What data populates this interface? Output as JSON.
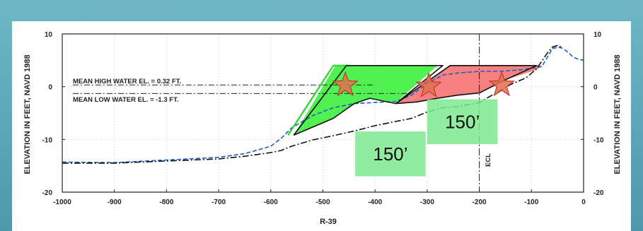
{
  "chart_data": {
    "type": "line",
    "title": "",
    "xlabel": "R-39",
    "ylabel_left": "ELEVATION IN FEET,  NAVD 1988",
    "ylabel_right": "ELEVATION IN FEET,  NAVD 1988",
    "xlim": [
      -1000,
      0
    ],
    "ylim": [
      -20,
      10
    ],
    "grid": true,
    "x_ticks": [
      -1000,
      -900,
      -800,
      -700,
      -600,
      -500,
      -400,
      -300,
      -200,
      -100,
      0
    ],
    "x_tick_labels": [
      "-1000",
      "-900",
      "-800",
      "-700",
      "-600",
      "-500",
      "-400",
      "-300",
      "-200",
      "-100",
      "0"
    ],
    "y_ticks": [
      10,
      0,
      -10,
      -20
    ],
    "y_tick_labels": [
      "10",
      "0",
      "-10",
      "-20"
    ],
    "annotations": {
      "mhw": "MEAN HIGH WATER EL. = 0.32 FT.",
      "mlw": "MEAN LOW WATER EL. = -1.3 FT.",
      "ecl": "ECL",
      "dist_left": "150’",
      "dist_right": "150’"
    },
    "mhw_value": 0.32,
    "mlw_value": -1.3,
    "ecl_x": -200,
    "series": [
      {
        "style": "dashed",
        "color": "#1f5fbf",
        "x": [
          -1000,
          -900,
          -800,
          -700,
          -650,
          -600,
          -580,
          -560,
          -520,
          -480,
          -440,
          -400,
          -360,
          -330,
          -300,
          -270,
          -240,
          -200,
          -160,
          -120,
          -100,
          -80,
          -70,
          -60,
          -50,
          -40,
          -30,
          -20,
          -10,
          0
        ],
        "y": [
          -14.3,
          -14.4,
          -13.9,
          -13.4,
          -12.7,
          -11.3,
          -9.8,
          -7.8,
          -5.5,
          -4.0,
          -3.2,
          -3.0,
          -2.8,
          -1.6,
          0.6,
          2.2,
          2.6,
          2.9,
          2.9,
          3.2,
          3.5,
          3.8,
          5.5,
          7.2,
          7.5,
          7.3,
          6.5,
          5.6,
          5.2,
          5.0
        ]
      },
      {
        "style": "dash-dot",
        "color": "#111111",
        "x": [
          -1000,
          -900,
          -800,
          -700,
          -650,
          -600,
          -580,
          -560,
          -520,
          -480,
          -440,
          -400,
          -360,
          -330,
          -300,
          -270,
          -240,
          -200,
          -170,
          -140,
          -110,
          -90,
          -70,
          -60,
          -50,
          -40
        ],
        "y": [
          -14.5,
          -14.5,
          -14.1,
          -13.7,
          -13.2,
          -12.5,
          -12.1,
          -11.3,
          -10.1,
          -9.3,
          -8.4,
          -7.4,
          -6.6,
          -6.0,
          -4.8,
          -4.0,
          -3.8,
          -3.0,
          -1.3,
          0.4,
          1.7,
          3.4,
          6.3,
          7.5,
          7.8,
          7.4
        ]
      }
    ],
    "fill_regions": [
      {
        "name": "",
        "color": "#33ee33",
        "x": [
          -556,
          -476,
          -450,
          -380,
          -317,
          -280,
          -360,
          -410,
          -440,
          -480
        ],
        "y": [
          -9.2,
          4.0,
          4.0,
          4.0,
          4.0,
          4.0,
          -3.0,
          -2.2,
          -3.4,
          -6.0
        ]
      },
      {
        "name": "",
        "color": "#f56060",
        "x": [
          -360,
          -256,
          -80,
          -90,
          -150,
          -200,
          -240,
          -280,
          -320
        ],
        "y": [
          -3.2,
          4.0,
          4.0,
          3.2,
          1.3,
          -1.2,
          -1.6,
          -2.2,
          -2.9
        ]
      }
    ],
    "outlines": [
      {
        "color": "#3ad23a",
        "x": [
          -567,
          -480,
          -450
        ],
        "y": [
          -9.2,
          4.0,
          4.0
        ]
      },
      {
        "color": "#111111",
        "x": [
          -556,
          -455,
          -270,
          -360,
          -410,
          -440,
          -480,
          -556
        ],
        "y": [
          -9.2,
          4.0,
          4.0,
          -3.2,
          -2.2,
          -3.2,
          -6.0,
          -9.2
        ]
      },
      {
        "color": "#111111",
        "x": [
          -360,
          -256,
          -90,
          -150,
          -200,
          -240,
          -280,
          -320,
          -360
        ],
        "y": [
          -3.2,
          4.0,
          4.0,
          1.3,
          -1.2,
          -1.6,
          -2.2,
          -2.9,
          -3.2
        ]
      }
    ],
    "markers": [
      {
        "x": -457,
        "y": 0.3,
        "color": "#e0704f"
      },
      {
        "x": -297,
        "y": 0.1,
        "color": "#e0704f"
      },
      {
        "x": -157,
        "y": 0.3,
        "color": "#e0704f"
      }
    ],
    "green_boxes": [
      {
        "label_key": "dist_right",
        "x0": -300,
        "x1": -165,
        "y0": -10.9,
        "y1": -2.4
      },
      {
        "label_key": "dist_left",
        "x0": -438,
        "x1": -303,
        "y0": -17.0,
        "y1": -8.5
      }
    ]
  }
}
